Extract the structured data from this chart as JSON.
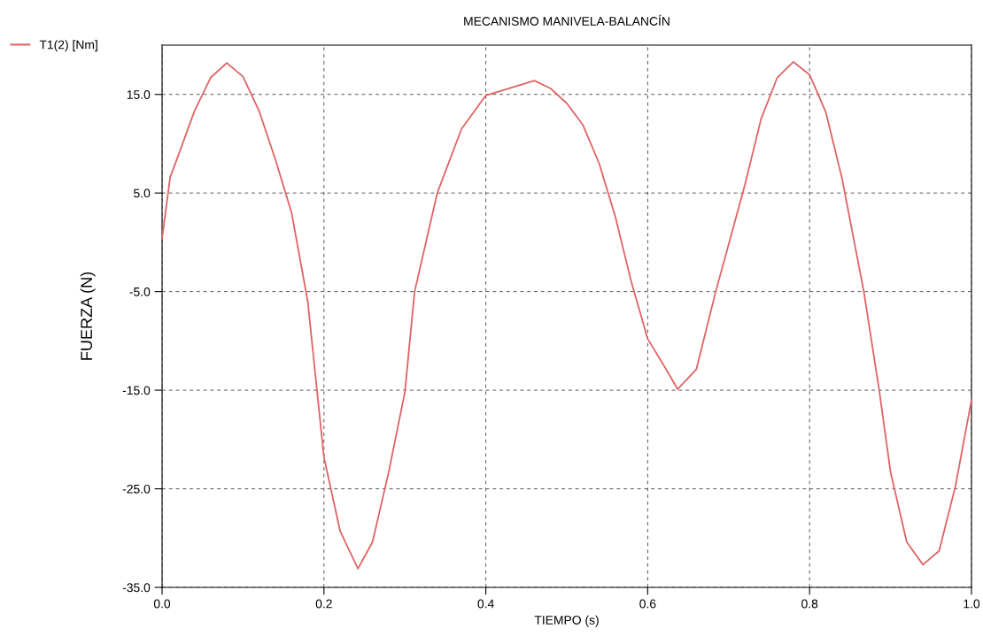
{
  "chart_data": {
    "type": "line",
    "title": "MECANISMO MANIVELA-BALANCÍN",
    "xlabel": "TIEMPO (s)",
    "ylabel": "FUERZA (N)",
    "x": [
      0,
      0.01,
      0.02,
      0.04,
      0.06,
      0.08,
      0.1,
      0.12,
      0.14,
      0.16,
      0.18,
      0.2,
      0.22,
      0.242,
      0.26,
      0.28,
      0.3,
      0.312,
      0.34,
      0.37,
      0.4,
      0.42,
      0.46,
      0.48,
      0.5,
      0.52,
      0.54,
      0.56,
      0.58,
      0.6,
      0.62,
      0.637,
      0.66,
      0.684,
      0.7,
      0.72,
      0.74,
      0.76,
      0.78,
      0.8,
      0.82,
      0.84,
      0.867,
      0.886,
      0.9,
      0.92,
      0.94,
      0.96,
      0.98,
      1.0
    ],
    "series": [
      {
        "name": "T1(2) [Nm]",
        "color": "#e06464",
        "values": [
          0.4,
          6.6,
          8.8,
          13.3,
          16.7,
          18.2,
          16.8,
          13.3,
          8.4,
          3.0,
          -6,
          -21.8,
          -29.3,
          -33.1,
          -30.4,
          -23.3,
          -15.2,
          -5,
          5,
          11.5,
          14.9,
          15.4,
          16.4,
          15.6,
          14.1,
          11.9,
          8.0,
          2.6,
          -4.1,
          -9.8,
          -12.5,
          -14.9,
          -12.9,
          -5,
          -0.2,
          5.8,
          12.5,
          16.7,
          18.3,
          17.0,
          13.2,
          6.5,
          -5,
          -15,
          -23.3,
          -30.4,
          -32.7,
          -31.3,
          -24.8,
          -16.0
        ]
      }
    ],
    "xlim": [
      0,
      1
    ],
    "ylim": [
      -35,
      20
    ],
    "xticks": [
      {
        "value": 0,
        "label": "0.0"
      },
      {
        "value": 0.2,
        "label": "0.2"
      },
      {
        "value": 0.4,
        "label": "0.4"
      },
      {
        "value": 0.6,
        "label": "0.6"
      },
      {
        "value": 0.8,
        "label": "0.8"
      },
      {
        "value": 1,
        "label": "1.0"
      }
    ],
    "yticks": [
      {
        "value": -35,
        "label": "-35.0"
      },
      {
        "value": -25,
        "label": "-25.0"
      },
      {
        "value": -15,
        "label": "-15.0"
      },
      {
        "value": -5,
        "label": "-5.0"
      },
      {
        "value": 5,
        "label": "5.0"
      },
      {
        "value": 15,
        "label": "15.0"
      }
    ],
    "grid": true,
    "legend": "top left",
    "line_style": "solid"
  }
}
